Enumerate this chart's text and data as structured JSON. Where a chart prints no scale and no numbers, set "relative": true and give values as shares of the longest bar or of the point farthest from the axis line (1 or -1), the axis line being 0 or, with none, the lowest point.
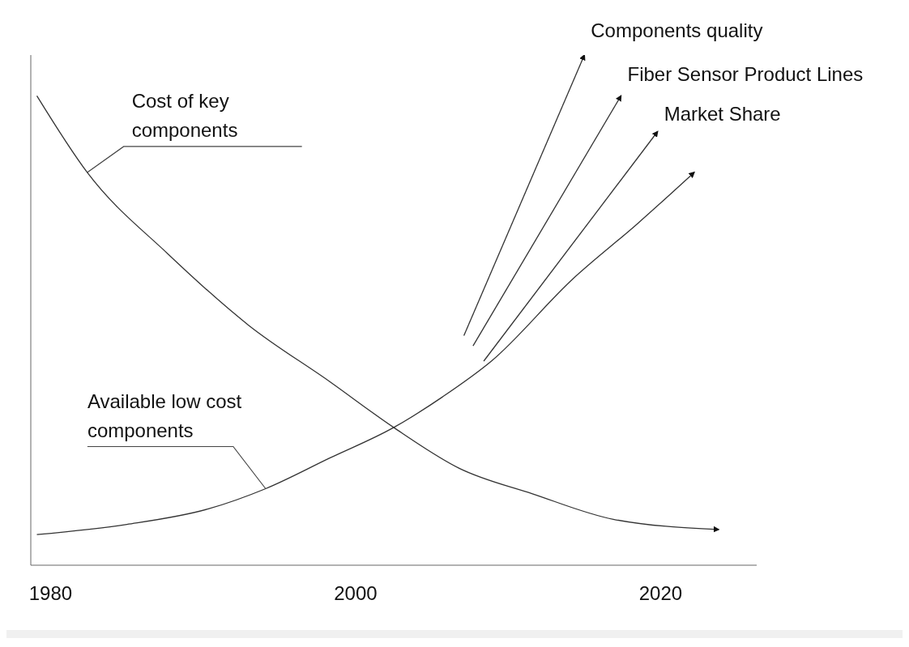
{
  "chart_data": {
    "type": "line",
    "relative": true,
    "xlim": [
      1978.7,
      2026.3
    ],
    "xticks": [
      1980,
      2000,
      2020
    ],
    "color": "#333333",
    "series": [
      {
        "name": "Cost of key components",
        "x": [
          1979.1,
          1982.4,
          1987.7,
          1993.0,
          1998.3,
          2002.5,
          2006.8,
          2011.6,
          2016.9,
          2023.8
        ],
        "values": [
          0.92,
          0.77,
          0.61,
          0.47,
          0.36,
          0.27,
          0.19,
          0.14,
          0.09,
          0.07
        ]
      },
      {
        "name": "Available low cost components",
        "x": [
          1979.1,
          1985.0,
          1990.3,
          1994.1,
          1998.3,
          2002.5,
          2005.7,
          2008.9,
          2014.2,
          2018.5,
          2022.2
        ],
        "values": [
          0.06,
          0.08,
          0.11,
          0.15,
          0.21,
          0.27,
          0.33,
          0.4,
          0.56,
          0.67,
          0.77
        ]
      },
      {
        "name": "Components quality",
        "x": [
          2007.1,
          2015.0
        ],
        "values": [
          0.45,
          1
        ]
      },
      {
        "name": "Fiber Sensor Product Lines",
        "x": [
          2007.7,
          2017.4
        ],
        "values": [
          0.43,
          0.92
        ]
      },
      {
        "name": "Market Share",
        "x": [
          2008.4,
          2019.8
        ],
        "values": [
          0.4,
          0.85
        ]
      }
    ]
  }
}
